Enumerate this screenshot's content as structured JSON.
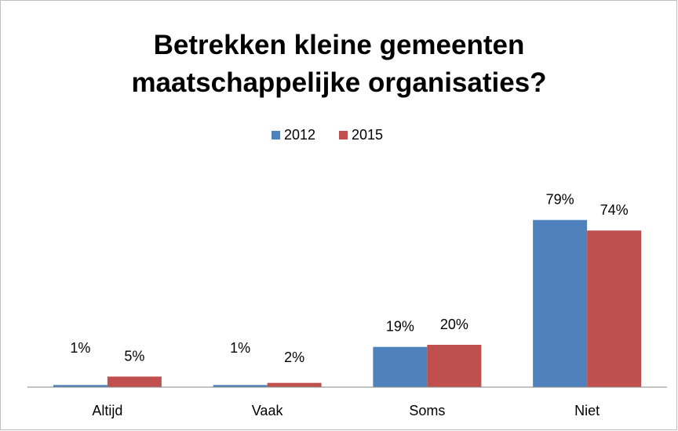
{
  "chart_data": {
    "type": "bar",
    "title": "Betrekken kleine gemeenten maatschappelijke organisaties?",
    "categories": [
      "Altijd",
      "Vaak",
      "Soms",
      "Niet"
    ],
    "series": [
      {
        "name": "2012",
        "color": "#4f81bd",
        "values": [
          1,
          1,
          19,
          79
        ],
        "value_labels": [
          "1%",
          "1%",
          "19%",
          "79%"
        ]
      },
      {
        "name": "2015",
        "color": "#c0504d",
        "values": [
          5,
          2,
          20,
          74
        ],
        "value_labels": [
          "5%",
          "2%",
          "20%",
          "74%"
        ]
      }
    ],
    "ylim": [
      0,
      90
    ],
    "legend": "top"
  }
}
